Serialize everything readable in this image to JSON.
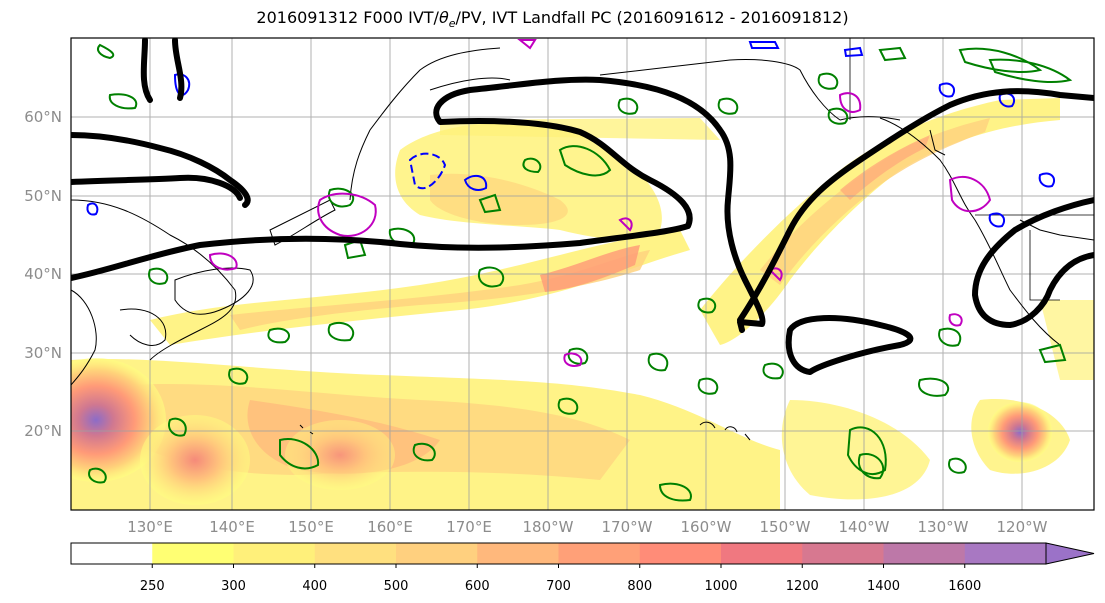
{
  "title": {
    "prefix": "2016091312 F000 IVT/",
    "theta": "θ",
    "theta_sub": "e",
    "suffix": "/PV, IVT Landfall PC (2016091612 - 2016091812)"
  },
  "map": {
    "lat_labels": [
      "60°N",
      "50°N",
      "40°N",
      "30°N",
      "20°N"
    ],
    "lon_labels": [
      "130°E",
      "140°E",
      "150°E",
      "160°E",
      "170°E",
      "180°W",
      "170°W",
      "160°W",
      "150°W",
      "140°W",
      "130°W",
      "120°W"
    ],
    "colors": {
      "ivt_low": "#ffff73",
      "ivt_high": "#9b72c8",
      "theta_e": "#000000",
      "pv_positive": "#008000",
      "pv_negative": "#0000ff",
      "pc": "#c000c0"
    }
  },
  "colorbar": {
    "labels": [
      "250",
      "300",
      "400",
      "500",
      "600",
      "700",
      "800",
      "1000",
      "1200",
      "1400",
      "1600"
    ],
    "colors": [
      "#ffffff",
      "#ffff73",
      "#fff07a",
      "#ffe07f",
      "#ffd07f",
      "#ffb87c",
      "#ffa078",
      "#ff8c78",
      "#f07880",
      "#d77890",
      "#bd78a8",
      "#a878c2",
      "#9b72c8"
    ]
  }
}
